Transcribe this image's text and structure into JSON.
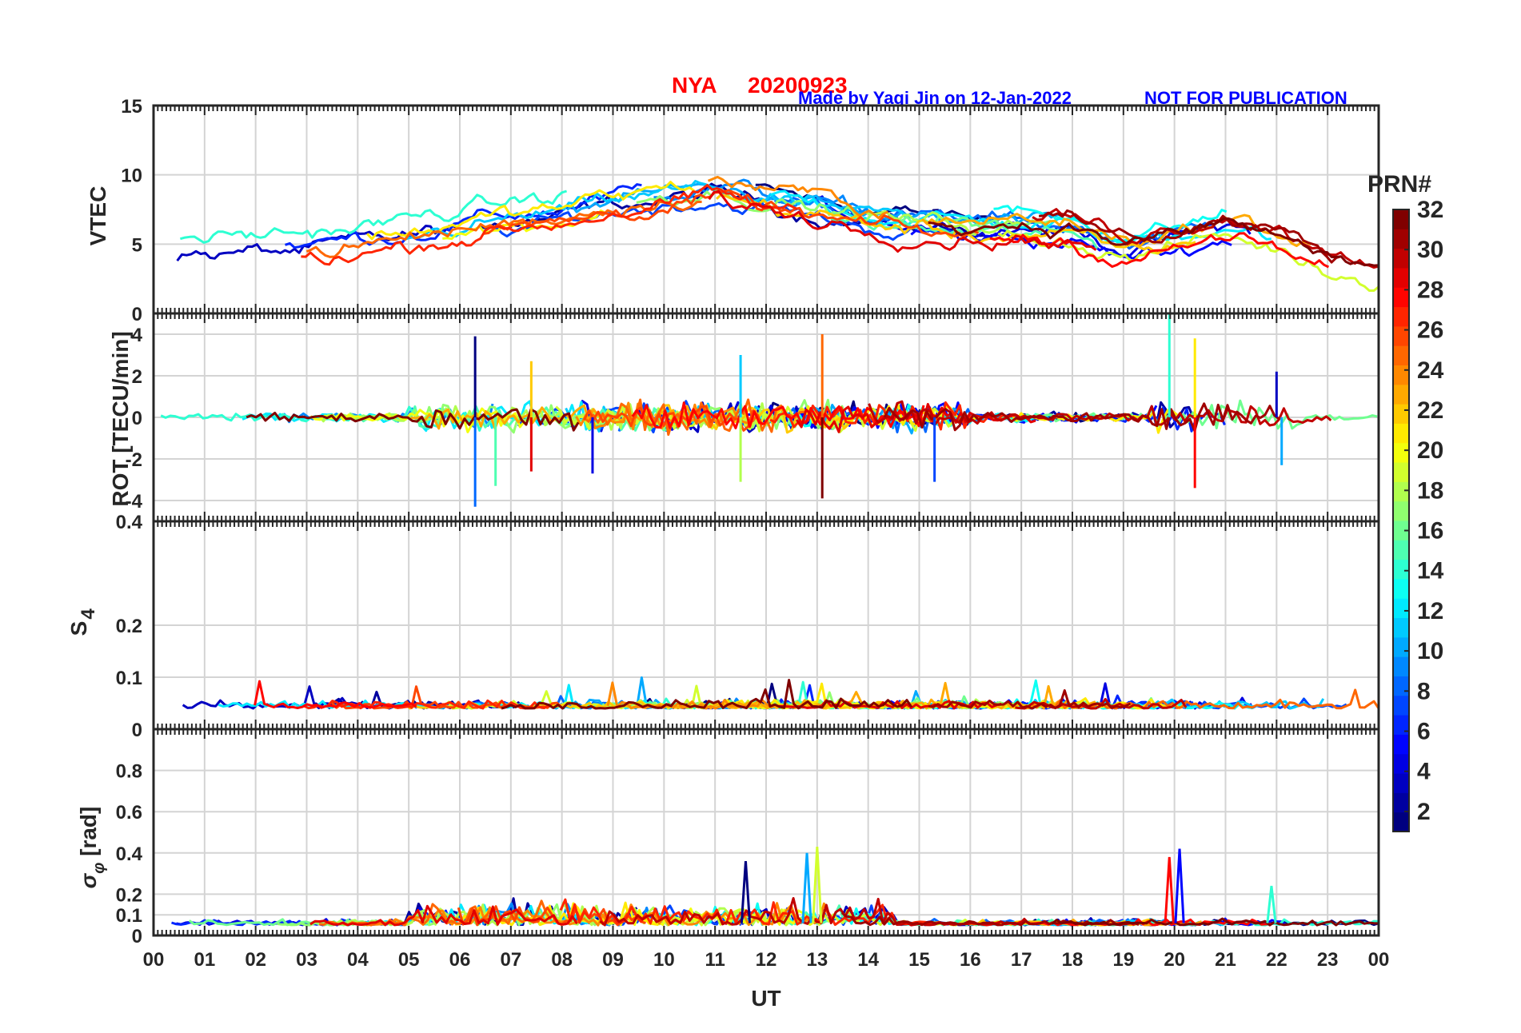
{
  "chart_data": {
    "type": "line",
    "station": "NYA",
    "date": "20200923",
    "credit": "Made by Yaqi Jin on 12-Jan-2022",
    "notice": "NOT FOR PUBLICATION",
    "xlabel": "UT",
    "x_ticks": [
      "00",
      "01",
      "02",
      "03",
      "04",
      "05",
      "06",
      "07",
      "08",
      "09",
      "10",
      "11",
      "12",
      "13",
      "14",
      "15",
      "16",
      "17",
      "18",
      "19",
      "20",
      "21",
      "22",
      "23",
      "00"
    ],
    "xlim": [
      0,
      24
    ],
    "panels": [
      {
        "id": "vtec",
        "ylabel": "VTEC",
        "ylim": [
          0,
          15
        ],
        "y_ticks": [
          "0",
          "5",
          "10",
          "15"
        ],
        "y_values": [
          0,
          5,
          10,
          15
        ],
        "description_trend": {
          "x": [
            0,
            1,
            2,
            3,
            4,
            5,
            6,
            7,
            8,
            9,
            10,
            11,
            12,
            13,
            14,
            15,
            16,
            17,
            18,
            19,
            20,
            21,
            22,
            23,
            24
          ],
          "y": [
            4.5,
            4.6,
            4.7,
            4.9,
            5.3,
            5.8,
            6.5,
            7.0,
            7.5,
            8.3,
            8.8,
            9.2,
            8.5,
            7.8,
            7.2,
            6.8,
            6.5,
            6.5,
            6.2,
            5.0,
            5.5,
            6.5,
            5.5,
            4.0,
            3.3
          ]
        }
      },
      {
        "id": "rot",
        "ylabel": "ROT [TECU/min]",
        "ylim": [
          -5,
          5
        ],
        "y_ticks": [
          "-4",
          "-2",
          "0",
          "2",
          "4"
        ],
        "y_values": [
          -4,
          -2,
          0,
          2,
          4
        ],
        "spikes": [
          {
            "x": 6.3,
            "y": 3.9
          },
          {
            "x": 6.3,
            "y": -4.3
          },
          {
            "x": 6.7,
            "y": -3.3
          },
          {
            "x": 7.4,
            "y": 2.7
          },
          {
            "x": 7.4,
            "y": -2.6
          },
          {
            "x": 8.6,
            "y": -2.7
          },
          {
            "x": 11.5,
            "y": 3.0
          },
          {
            "x": 11.5,
            "y": -3.1
          },
          {
            "x": 13.1,
            "y": 4.0
          },
          {
            "x": 13.1,
            "y": -3.9
          },
          {
            "x": 15.3,
            "y": -3.1
          },
          {
            "x": 19.9,
            "y": 5.0
          },
          {
            "x": 20.4,
            "y": 3.8
          },
          {
            "x": 20.4,
            "y": -3.4
          },
          {
            "x": 22.0,
            "y": 2.2
          },
          {
            "x": 22.1,
            "y": -2.3
          }
        ]
      },
      {
        "id": "s4",
        "ylabel": "S4",
        "ylim": [
          0,
          0.4
        ],
        "y_ticks": [
          "0",
          "0.1",
          "0.2",
          "0.4"
        ],
        "y_values": [
          0,
          0.1,
          0.2,
          0.4
        ],
        "baseline": 0.04
      },
      {
        "id": "sigma_phi",
        "ylabel": "σφ [rad]",
        "ylim": [
          0,
          1
        ],
        "y_ticks": [
          "0",
          "0.1",
          "0.2",
          "0.4",
          "0.6",
          "0.8"
        ],
        "y_values": [
          0,
          0.1,
          0.2,
          0.4,
          0.6,
          0.8
        ],
        "peaks": [
          {
            "x": 11.6,
            "y": 0.36
          },
          {
            "x": 12.8,
            "y": 0.4
          },
          {
            "x": 13.0,
            "y": 0.43
          },
          {
            "x": 19.9,
            "y": 0.38
          },
          {
            "x": 20.1,
            "y": 0.42
          },
          {
            "x": 21.9,
            "y": 0.24
          }
        ]
      }
    ],
    "colorbar": {
      "label": "PRN#",
      "ticks": [
        "2",
        "4",
        "6",
        "8",
        "10",
        "12",
        "14",
        "16",
        "18",
        "20",
        "22",
        "24",
        "26",
        "28",
        "30",
        "32"
      ],
      "range": [
        1,
        32
      ],
      "colormap": "jet"
    },
    "num_series": 32
  },
  "colors": {
    "title": "#ff0000",
    "credit": "#0000ff",
    "axis": "#262626",
    "grid": "#d9d9d9"
  }
}
